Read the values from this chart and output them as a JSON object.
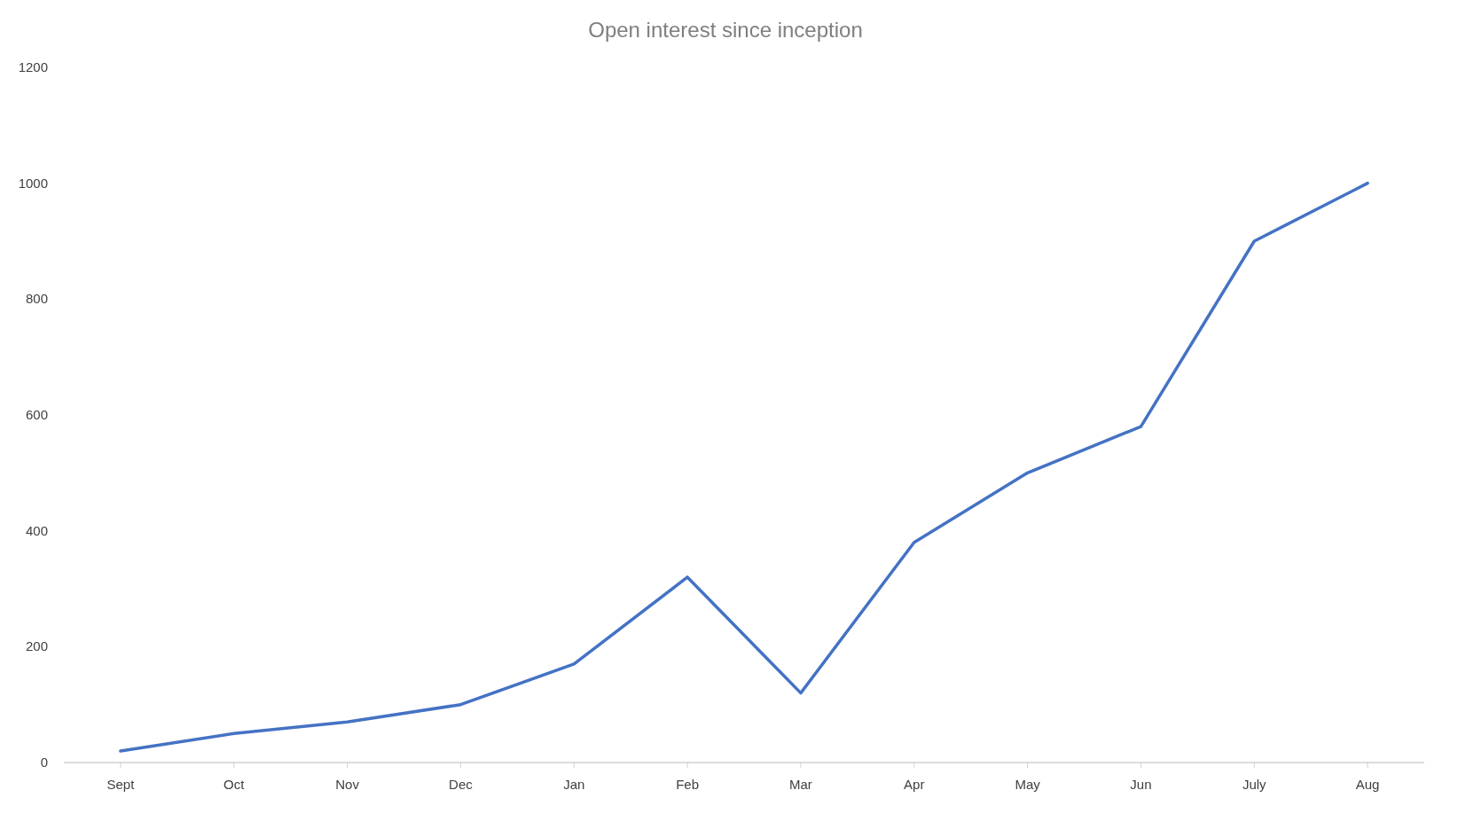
{
  "chart_data": {
    "type": "line",
    "title": "Open interest since inception",
    "categories": [
      "Sept",
      "Oct",
      "Nov",
      "Dec",
      "Jan",
      "Feb",
      "Mar",
      "Apr",
      "May",
      "Jun",
      "July",
      "Aug"
    ],
    "series": [
      {
        "color": "#4472c4",
        "values": [
          20,
          50,
          70,
          100,
          170,
          320,
          120,
          380,
          500,
          580,
          900,
          1000
        ]
      }
    ],
    "ylim": [
      0,
      1200
    ],
    "yticks": [
      0,
      200,
      400,
      600,
      800,
      1000,
      1200
    ],
    "grid": false,
    "marker": "none",
    "line_style": "solid"
  }
}
